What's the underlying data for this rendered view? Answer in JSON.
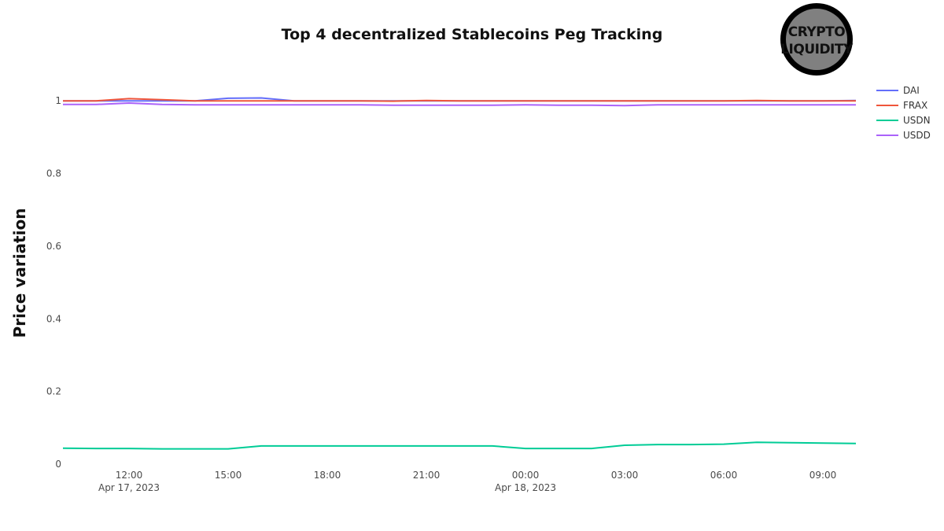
{
  "chart_data": {
    "type": "line",
    "title": "Top 4 decentralized Stablecoins Peg Tracking",
    "xlabel": "",
    "ylabel": "Price variation",
    "ylim": [
      0,
      1.1
    ],
    "yticks": [
      "0",
      "0.2",
      "0.4",
      "0.6",
      "0.8",
      "1"
    ],
    "ytick_values": [
      0,
      0.2,
      0.4,
      0.6,
      0.8,
      1
    ],
    "xticks": [
      {
        "time": "2023-04-17 12:00",
        "label": "12:00",
        "sublabel": "Apr 17, 2023"
      },
      {
        "time": "2023-04-17 15:00",
        "label": "15:00",
        "sublabel": ""
      },
      {
        "time": "2023-04-17 18:00",
        "label": "18:00",
        "sublabel": ""
      },
      {
        "time": "2023-04-17 21:00",
        "label": "21:00",
        "sublabel": ""
      },
      {
        "time": "2023-04-18 00:00",
        "label": "00:00",
        "sublabel": "Apr 18, 2023"
      },
      {
        "time": "2023-04-18 03:00",
        "label": "03:00",
        "sublabel": ""
      },
      {
        "time": "2023-04-18 06:00",
        "label": "06:00",
        "sublabel": ""
      },
      {
        "time": "2023-04-18 09:00",
        "label": "09:00",
        "sublabel": ""
      }
    ],
    "x": [
      "2023-04-17 10:00",
      "2023-04-17 11:00",
      "2023-04-17 12:00",
      "2023-04-17 13:00",
      "2023-04-17 14:00",
      "2023-04-17 15:00",
      "2023-04-17 16:00",
      "2023-04-17 17:00",
      "2023-04-17 18:00",
      "2023-04-17 19:00",
      "2023-04-17 20:00",
      "2023-04-17 21:00",
      "2023-04-17 22:00",
      "2023-04-17 23:00",
      "2023-04-18 00:00",
      "2023-04-18 01:00",
      "2023-04-18 02:00",
      "2023-04-18 03:00",
      "2023-04-18 04:00",
      "2023-04-18 05:00",
      "2023-04-18 06:00",
      "2023-04-18 07:00",
      "2023-04-18 08:00",
      "2023-04-18 09:00",
      "2023-04-18 10:00"
    ],
    "series": [
      {
        "name": "DAI",
        "color": "#636efa",
        "values": [
          1.0,
          1.0,
          1.0,
          1.0,
          1.0,
          1.007,
          1.008,
          1.0,
          1.0,
          1.0,
          1.0,
          1.0,
          1.0,
          1.0,
          1.0,
          1.0,
          1.0,
          1.0,
          1.0,
          1.0,
          1.0,
          1.0,
          1.0,
          1.0,
          1.001
        ]
      },
      {
        "name": "FRAX",
        "color": "#ef553b",
        "values": [
          1.0,
          1.0,
          1.006,
          1.003,
          1.0,
          1.0,
          1.0,
          1.0,
          1.0,
          1.0,
          0.999,
          1.001,
          1.0,
          1.0,
          1.0,
          1.0,
          1.0,
          1.0,
          1.0,
          1.0,
          1.0,
          1.001,
          1.0,
          1.0,
          1.0
        ]
      },
      {
        "name": "USDN",
        "color": "#00cc96",
        "values": [
          0.044,
          0.043,
          0.043,
          0.042,
          0.042,
          0.042,
          0.05,
          0.05,
          0.05,
          0.05,
          0.05,
          0.05,
          0.05,
          0.05,
          0.043,
          0.043,
          0.043,
          0.052,
          0.054,
          0.054,
          0.055,
          0.06,
          0.059,
          0.058,
          0.057
        ]
      },
      {
        "name": "USDD",
        "color": "#ab63fa",
        "values": [
          0.99,
          0.99,
          0.994,
          0.99,
          0.989,
          0.989,
          0.989,
          0.989,
          0.989,
          0.989,
          0.988,
          0.988,
          0.988,
          0.988,
          0.989,
          0.988,
          0.988,
          0.987,
          0.989,
          0.989,
          0.989,
          0.989,
          0.989,
          0.989,
          0.989
        ]
      }
    ],
    "legend": "top-right",
    "grid": false
  },
  "logo": {
    "line1": "CRYPTO",
    "line2": "LIQUIDITY",
    "bg": "#808080",
    "ring": "#000000"
  }
}
